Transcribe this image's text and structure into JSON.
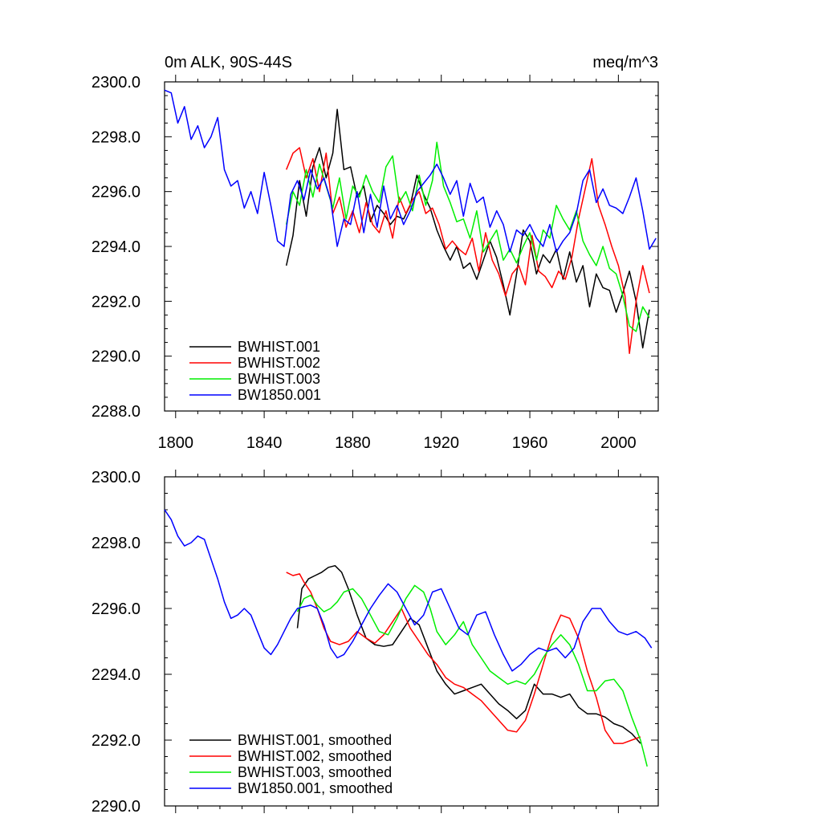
{
  "chart_data": [
    {
      "type": "line",
      "title": "0m ALK, 90S-44S",
      "units": "meq/m^3",
      "xlim": [
        1795,
        2018
      ],
      "ylim": [
        2288,
        2300
      ],
      "ytick_labels": [
        "2288.0",
        "2290.0",
        "2292.0",
        "2294.0",
        "2296.0",
        "2298.0",
        "2300.0"
      ],
      "xtick_labels": [
        "1800",
        "1840",
        "1880",
        "1920",
        "1960",
        "2000"
      ],
      "series": [
        {
          "name": "BWHIST.001",
          "color": "#000000",
          "x": [
            1850,
            1853,
            1856,
            1859,
            1862,
            1865,
            1868,
            1871,
            1873,
            1876,
            1879,
            1882,
            1885,
            1888,
            1891,
            1894,
            1897,
            1900,
            1903,
            1906,
            1909,
            1912,
            1915,
            1918,
            1921,
            1924,
            1927,
            1930,
            1933,
            1936,
            1939,
            1942,
            1945,
            1948,
            1951,
            1954,
            1957,
            1960,
            1963,
            1966,
            1969,
            1972,
            1975,
            1978,
            1981,
            1984,
            1987,
            1990,
            1993,
            1996,
            1999,
            2002,
            2005,
            2008,
            2011,
            2014
          ],
          "y": [
            2293.3,
            2294.4,
            2296.4,
            2295.1,
            2296.9,
            2297.6,
            2296.5,
            2297.4,
            2299.0,
            2296.8,
            2296.9,
            2295.8,
            2296.2,
            2294.9,
            2295.5,
            2295.2,
            2294.8,
            2295.1,
            2295.0,
            2295.5,
            2296.6,
            2295.9,
            2295.4,
            2294.6,
            2294.0,
            2293.5,
            2294.0,
            2293.2,
            2293.4,
            2292.8,
            2293.5,
            2294.2,
            2293.6,
            2292.6,
            2291.5,
            2293.0,
            2294.6,
            2294.2,
            2293.0,
            2293.7,
            2293.4,
            2293.9,
            2292.8,
            2293.8,
            2292.7,
            2293.3,
            2291.8,
            2293.0,
            2292.5,
            2292.4,
            2291.6,
            2292.3,
            2293.1,
            2292.0,
            2290.3,
            2291.7
          ]
        },
        {
          "name": "BWHIST.002",
          "color": "#ff0000",
          "x": [
            1850,
            1853,
            1856,
            1859,
            1862,
            1865,
            1868,
            1871,
            1874,
            1877,
            1880,
            1883,
            1886,
            1889,
            1892,
            1895,
            1898,
            1901,
            1904,
            1907,
            1910,
            1913,
            1916,
            1919,
            1922,
            1925,
            1928,
            1931,
            1934,
            1937,
            1940,
            1943,
            1946,
            1949,
            1952,
            1955,
            1958,
            1961,
            1964,
            1967,
            1970,
            1973,
            1976,
            1979,
            1982,
            1985,
            1988,
            1991,
            1994,
            1997,
            2000,
            2003,
            2005,
            2008,
            2011,
            2014
          ],
          "y": [
            2296.8,
            2297.4,
            2297.6,
            2296.5,
            2297.2,
            2296.0,
            2297.4,
            2295.2,
            2295.8,
            2294.7,
            2295.3,
            2294.5,
            2295.6,
            2294.8,
            2294.5,
            2295.3,
            2294.3,
            2295.8,
            2295.2,
            2295.7,
            2296.0,
            2295.2,
            2295.4,
            2294.8,
            2293.9,
            2294.2,
            2293.9,
            2293.7,
            2294.3,
            2293.1,
            2294.5,
            2293.5,
            2293.0,
            2292.2,
            2293.0,
            2293.3,
            2292.6,
            2294.4,
            2293.1,
            2292.9,
            2292.5,
            2293.1,
            2292.8,
            2293.6,
            2295.0,
            2296.1,
            2297.2,
            2295.5,
            2294.8,
            2294.0,
            2293.3,
            2292.2,
            2290.1,
            2292.0,
            2293.3,
            2292.3
          ]
        },
        {
          "name": "BWHIST.003",
          "color": "#00ee00",
          "x": [
            1850,
            1853,
            1856,
            1859,
            1862,
            1865,
            1868,
            1871,
            1874,
            1877,
            1880,
            1883,
            1886,
            1889,
            1892,
            1895,
            1898,
            1901,
            1904,
            1907,
            1910,
            1913,
            1916,
            1918,
            1921,
            1924,
            1927,
            1930,
            1933,
            1936,
            1939,
            1942,
            1945,
            1948,
            1951,
            1954,
            1957,
            1960,
            1963,
            1966,
            1969,
            1972,
            1975,
            1978,
            1981,
            1984,
            1987,
            1990,
            1993,
            1996,
            1999,
            2002,
            2005,
            2008,
            2011,
            2014
          ],
          "y": [
            2294.8,
            2296.0,
            2295.5,
            2296.8,
            2295.8,
            2297.0,
            2296.2,
            2295.4,
            2296.5,
            2295.0,
            2296.2,
            2295.8,
            2296.6,
            2296.0,
            2295.6,
            2296.9,
            2297.3,
            2295.6,
            2296.0,
            2295.3,
            2296.6,
            2295.5,
            2296.4,
            2297.8,
            2296.2,
            2295.6,
            2294.9,
            2295.0,
            2294.3,
            2295.3,
            2293.8,
            2294.2,
            2294.6,
            2293.5,
            2293.9,
            2293.4,
            2294.0,
            2294.5,
            2293.5,
            2294.6,
            2294.3,
            2295.5,
            2295.0,
            2294.6,
            2295.3,
            2294.2,
            2293.7,
            2293.3,
            2294.0,
            2293.2,
            2293.0,
            2292.2,
            2291.1,
            2290.9,
            2291.8,
            2291.4
          ]
        },
        {
          "name": "BW1850.001",
          "color": "#0000ff",
          "x": [
            1795,
            1798,
            1801,
            1804,
            1807,
            1810,
            1813,
            1816,
            1819,
            1822,
            1825,
            1828,
            1831,
            1834,
            1837,
            1840,
            1843,
            1846,
            1849,
            1852,
            1855,
            1858,
            1861,
            1864,
            1867,
            1870,
            1873,
            1876,
            1879,
            1882,
            1885,
            1888,
            1891,
            1894,
            1897,
            1900,
            1903,
            1906,
            1909,
            1912,
            1915,
            1918,
            1921,
            1924,
            1927,
            1930,
            1933,
            1936,
            1939,
            1942,
            1945,
            1948,
            1951,
            1954,
            1957,
            1960,
            1963,
            1966,
            1969,
            1972,
            1975,
            1978,
            1981,
            1984,
            1987,
            1990,
            1993,
            1996,
            1999,
            2002,
            2005,
            2008,
            2011,
            2014,
            2017
          ],
          "y": [
            2299.7,
            2299.6,
            2298.5,
            2299.1,
            2297.9,
            2298.4,
            2297.6,
            2298.0,
            2298.7,
            2296.8,
            2296.2,
            2296.4,
            2295.4,
            2296.0,
            2295.2,
            2296.7,
            2295.5,
            2294.2,
            2294.0,
            2295.9,
            2296.4,
            2295.7,
            2296.8,
            2296.1,
            2296.5,
            2295.7,
            2294.0,
            2295.0,
            2294.8,
            2296.0,
            2294.5,
            2295.9,
            2294.7,
            2296.2,
            2295.0,
            2295.5,
            2294.8,
            2295.3,
            2296.0,
            2296.3,
            2296.6,
            2297.0,
            2296.5,
            2295.9,
            2296.4,
            2295.1,
            2296.3,
            2295.6,
            2295.8,
            2294.7,
            2295.3,
            2294.8,
            2293.8,
            2294.6,
            2294.4,
            2294.8,
            2294.3,
            2294.0,
            2294.8,
            2293.8,
            2294.2,
            2294.5,
            2295.2,
            2296.4,
            2296.8,
            2295.6,
            2296.1,
            2295.5,
            2295.4,
            2295.2,
            2295.8,
            2296.5,
            2295.3,
            2293.9,
            2294.3
          ]
        }
      ]
    },
    {
      "type": "line",
      "xlim": [
        1795,
        2018
      ],
      "ylim": [
        2290,
        2300
      ],
      "ytick_labels": [
        "2290.0",
        "2292.0",
        "2294.0",
        "2296.0",
        "2298.0",
        "2300.0"
      ],
      "series": [
        {
          "name": "BWHIST.001, smoothed",
          "color": "#000000",
          "x": [
            1855,
            1857,
            1860,
            1863,
            1866,
            1869,
            1872,
            1875,
            1878,
            1882,
            1886,
            1890,
            1894,
            1898,
            1902,
            1906,
            1910,
            1914,
            1918,
            1922,
            1926,
            1930,
            1934,
            1938,
            1942,
            1946,
            1950,
            1954,
            1958,
            1962,
            1966,
            1970,
            1974,
            1978,
            1982,
            1986,
            1990,
            1994,
            1998,
            2002,
            2006,
            2010
          ],
          "y": [
            2295.4,
            2296.6,
            2296.9,
            2297.0,
            2297.1,
            2297.25,
            2297.3,
            2297.1,
            2296.6,
            2295.8,
            2295.1,
            2294.9,
            2294.85,
            2294.9,
            2295.3,
            2295.7,
            2295.5,
            2294.8,
            2294.1,
            2293.7,
            2293.4,
            2293.5,
            2293.6,
            2293.7,
            2293.4,
            2293.1,
            2292.9,
            2292.65,
            2292.9,
            2293.7,
            2293.4,
            2293.4,
            2293.3,
            2293.4,
            2293.0,
            2292.8,
            2292.8,
            2292.7,
            2292.5,
            2292.4,
            2292.2,
            2291.9
          ]
        },
        {
          "name": "BWHIST.002, smoothed",
          "color": "#ff0000",
          "x": [
            1850,
            1853,
            1856,
            1858,
            1861,
            1864,
            1867,
            1870,
            1874,
            1878,
            1882,
            1886,
            1890,
            1894,
            1898,
            1902,
            1906,
            1910,
            1914,
            1918,
            1922,
            1926,
            1930,
            1934,
            1938,
            1942,
            1946,
            1950,
            1954,
            1958,
            1962,
            1966,
            1970,
            1974,
            1978,
            1982,
            1986,
            1990,
            1994,
            1998,
            2002,
            2006,
            2010
          ],
          "y": [
            2297.1,
            2297.0,
            2297.05,
            2296.8,
            2296.5,
            2296.0,
            2295.4,
            2295.0,
            2294.9,
            2295.0,
            2295.3,
            2295.1,
            2294.95,
            2295.2,
            2295.6,
            2296.0,
            2295.4,
            2295.0,
            2294.6,
            2294.3,
            2293.9,
            2293.7,
            2293.6,
            2293.4,
            2293.2,
            2292.9,
            2292.6,
            2292.3,
            2292.25,
            2292.6,
            2293.4,
            2294.3,
            2295.2,
            2295.8,
            2295.7,
            2295.1,
            2294.1,
            2293.3,
            2292.3,
            2291.9,
            2291.9,
            2292.0,
            2292.1
          ]
        },
        {
          "name": "BWHIST.003, smoothed",
          "color": "#00ee00",
          "x": [
            1855,
            1858,
            1861,
            1864,
            1867,
            1870,
            1873,
            1876,
            1880,
            1884,
            1888,
            1892,
            1896,
            1900,
            1904,
            1908,
            1912,
            1915,
            1918,
            1922,
            1926,
            1930,
            1934,
            1938,
            1942,
            1946,
            1950,
            1954,
            1958,
            1962,
            1966,
            1970,
            1974,
            1978,
            1982,
            1986,
            1990,
            1994,
            1998,
            2002,
            2006,
            2010,
            2013
          ],
          "y": [
            2295.9,
            2296.3,
            2296.4,
            2296.1,
            2295.9,
            2296.0,
            2296.2,
            2296.5,
            2296.6,
            2296.3,
            2295.8,
            2295.3,
            2295.2,
            2295.7,
            2296.3,
            2296.7,
            2296.5,
            2296.0,
            2295.3,
            2294.9,
            2295.2,
            2295.6,
            2294.9,
            2294.5,
            2294.1,
            2293.9,
            2293.7,
            2293.8,
            2293.7,
            2294.0,
            2294.5,
            2294.9,
            2295.2,
            2294.9,
            2294.3,
            2293.5,
            2293.5,
            2293.8,
            2293.85,
            2293.5,
            2292.7,
            2292.0,
            2291.2
          ]
        },
        {
          "name": "BW1850.001, smoothed",
          "color": "#0000ff",
          "x": [
            1795,
            1798,
            1801,
            1804,
            1807,
            1810,
            1813,
            1816,
            1819,
            1822,
            1825,
            1828,
            1831,
            1834,
            1837,
            1840,
            1843,
            1846,
            1849,
            1852,
            1855,
            1858,
            1861,
            1864,
            1867,
            1870,
            1873,
            1876,
            1880,
            1884,
            1888,
            1892,
            1896,
            1900,
            1904,
            1908,
            1912,
            1916,
            1920,
            1924,
            1928,
            1932,
            1936,
            1940,
            1944,
            1948,
            1952,
            1956,
            1960,
            1964,
            1968,
            1972,
            1976,
            1980,
            1984,
            1988,
            1992,
            1996,
            2000,
            2004,
            2008,
            2012,
            2015
          ],
          "y": [
            2299.0,
            2298.7,
            2298.2,
            2297.9,
            2298.0,
            2298.2,
            2298.1,
            2297.5,
            2296.9,
            2296.2,
            2295.7,
            2295.8,
            2296.0,
            2295.8,
            2295.3,
            2294.8,
            2294.6,
            2294.9,
            2295.3,
            2295.7,
            2296.0,
            2296.05,
            2296.1,
            2296.0,
            2295.5,
            2294.8,
            2294.5,
            2294.6,
            2295.0,
            2295.5,
            2296.0,
            2296.4,
            2296.75,
            2296.5,
            2296.0,
            2295.5,
            2295.8,
            2296.5,
            2296.6,
            2296.0,
            2295.4,
            2295.2,
            2295.8,
            2295.9,
            2295.2,
            2294.6,
            2294.1,
            2294.3,
            2294.6,
            2294.8,
            2294.7,
            2294.8,
            2294.5,
            2294.8,
            2295.6,
            2296.0,
            2296.0,
            2295.6,
            2295.3,
            2295.2,
            2295.3,
            2295.1,
            2294.8
          ]
        }
      ]
    }
  ]
}
